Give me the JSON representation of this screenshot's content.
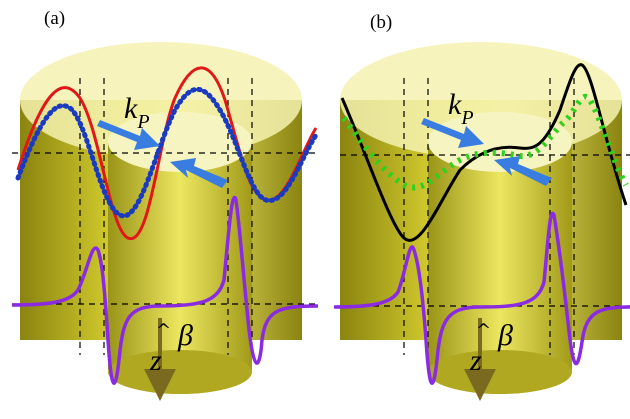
{
  "panels": [
    {
      "label": "(a)",
      "wave_label": "k",
      "wave_subscript": "P",
      "axis_label": "z",
      "angle_label": "β"
    },
    {
      "label": "(b)",
      "wave_label": "k",
      "wave_subscript": "P",
      "axis_label": "z",
      "angle_label": "β"
    }
  ],
  "colors": {
    "cylinder": "#c8c020",
    "cylinder_dark": "#8a8410",
    "top_face": "#f4f2b0",
    "arrow": "#3a7de0",
    "panel_a_curve": "#e01818",
    "panel_a_dots": "#1a3ac0",
    "panel_b_curve": "#000000",
    "panel_b_dots": "#30d020",
    "pulse": "#8a2be2",
    "z_arrow": "#7a6a20"
  },
  "icons": [
    "blue-arrow-icon",
    "z-axis-arrow-icon"
  ]
}
